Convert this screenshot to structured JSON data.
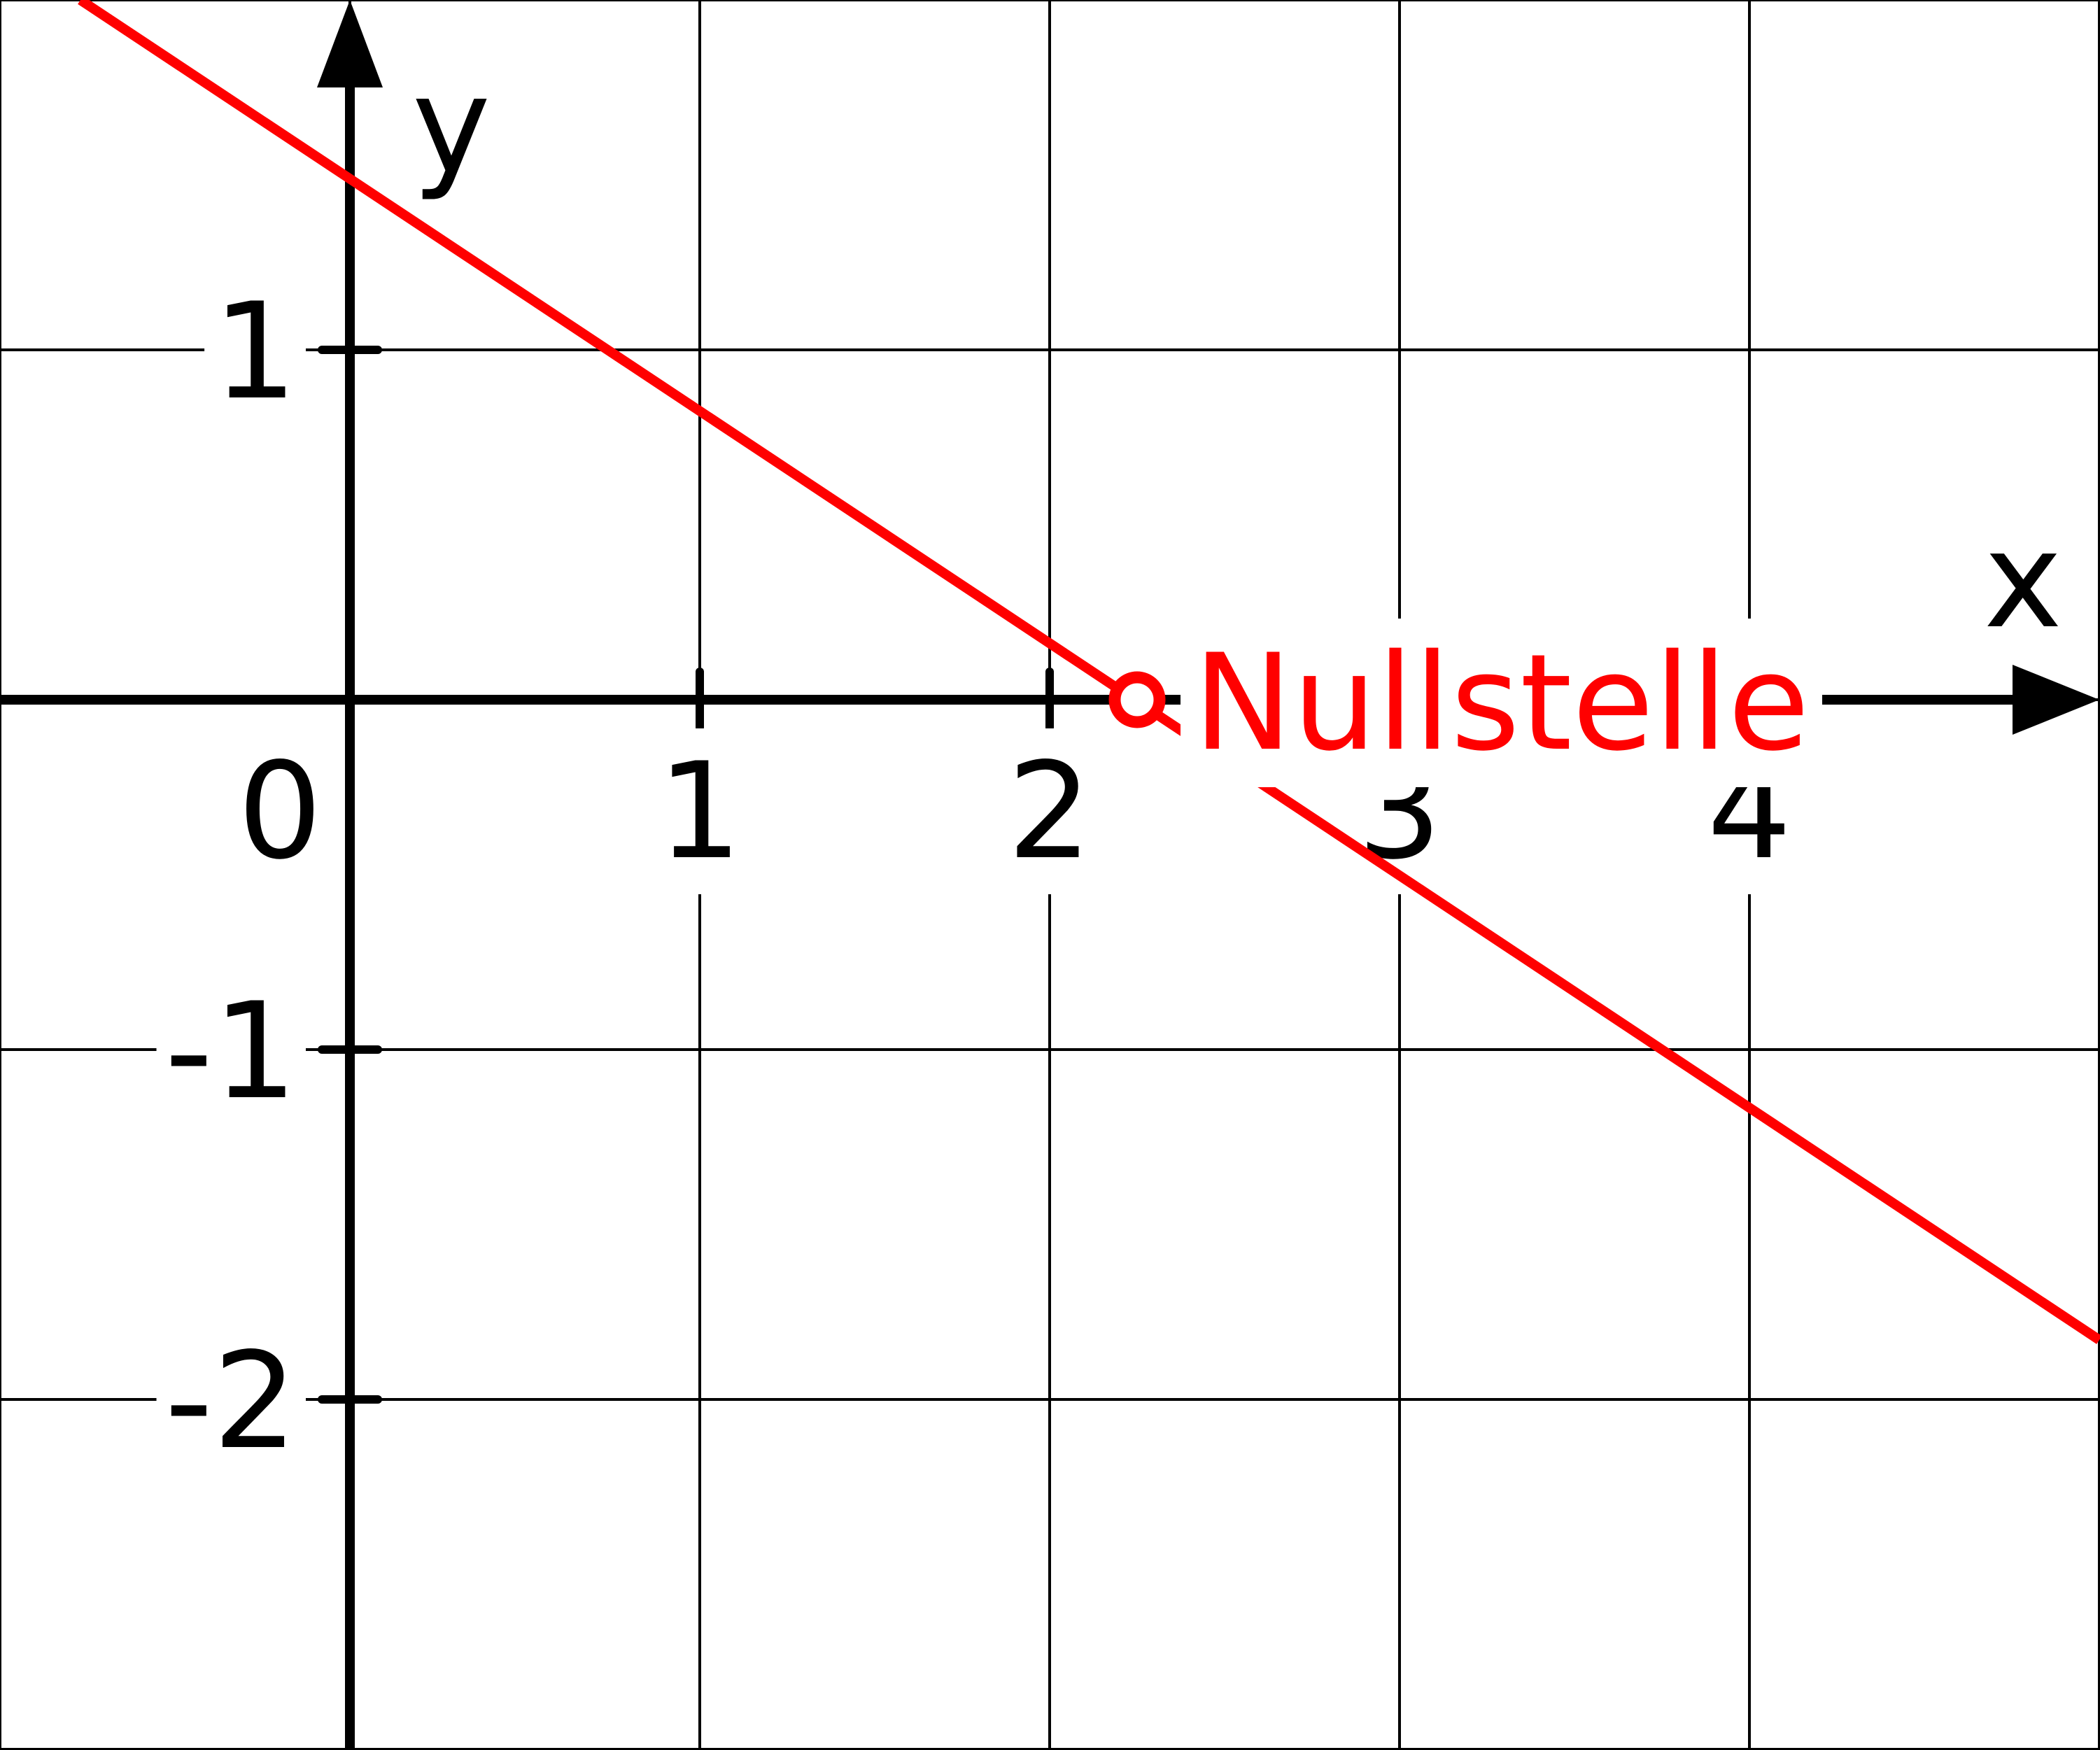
{
  "chart_data": {
    "type": "line",
    "title": "",
    "xlabel": "x",
    "ylabel": "y",
    "xlim": [
      -1,
      5
    ],
    "ylim": [
      -3,
      2
    ],
    "grid": true,
    "x_ticks": [
      {
        "value": 0,
        "label": "0"
      },
      {
        "value": 1,
        "label": "1"
      },
      {
        "value": 2,
        "label": "2"
      },
      {
        "value": 3,
        "label": "3"
      },
      {
        "value": 4,
        "label": "4"
      }
    ],
    "y_ticks": [
      {
        "value": 1,
        "label": "1"
      },
      {
        "value": -1,
        "label": "-1"
      },
      {
        "value": -2,
        "label": "-2"
      }
    ],
    "series": [
      {
        "type": "line",
        "color": "#ff0000",
        "x": [
          -0.77,
          5.0
        ],
        "y": [
          2.0,
          -1.83
        ]
      }
    ],
    "annotations": [
      {
        "text": "Nullstelle",
        "x": 2.25,
        "y": 0,
        "color": "#ff0000",
        "marker": "open-circle"
      }
    ]
  }
}
